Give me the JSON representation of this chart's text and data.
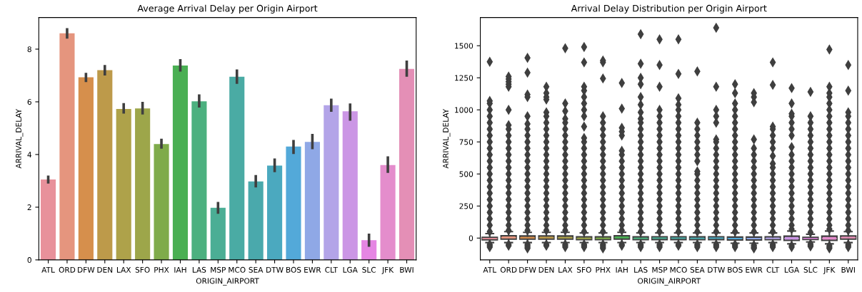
{
  "chart_data": [
    {
      "type": "bar",
      "title": "Average Arrival Delay per Origin Airport",
      "xlabel": "ORIGIN_AIRPORT",
      "ylabel": "ARRIVAL_DELAY",
      "categories": [
        "ATL",
        "ORD",
        "DFW",
        "DEN",
        "LAX",
        "SFO",
        "PHX",
        "IAH",
        "LAS",
        "MSP",
        "MCO",
        "SEA",
        "DTW",
        "BOS",
        "EWR",
        "CLT",
        "LGA",
        "SLC",
        "JFK",
        "BWI"
      ],
      "values": [
        3.05,
        8.6,
        6.93,
        7.2,
        5.73,
        5.75,
        4.4,
        7.38,
        6.02,
        1.98,
        6.95,
        2.98,
        3.58,
        4.3,
        4.48,
        5.87,
        5.64,
        0.75,
        3.6,
        7.25
      ],
      "errors": [
        [
          2.9,
          3.2
        ],
        [
          8.4,
          8.8
        ],
        [
          6.75,
          7.1
        ],
        [
          7.0,
          7.4
        ],
        [
          5.55,
          5.95
        ],
        [
          5.52,
          6.0
        ],
        [
          4.22,
          4.6
        ],
        [
          7.15,
          7.62
        ],
        [
          5.78,
          6.28
        ],
        [
          1.75,
          2.2
        ],
        [
          6.68,
          7.23
        ],
        [
          2.75,
          3.22
        ],
        [
          3.33,
          3.85
        ],
        [
          4.02,
          4.55
        ],
        [
          4.2,
          4.78
        ],
        [
          5.62,
          6.12
        ],
        [
          5.28,
          5.94
        ],
        [
          0.5,
          1.0
        ],
        [
          3.3,
          3.93
        ],
        [
          6.95,
          7.57
        ]
      ],
      "colors": [
        "#e8919b",
        "#e5957e",
        "#d68f4c",
        "#bd9a4a",
        "#aea24a",
        "#9da64a",
        "#7fab4a",
        "#4aaf53",
        "#4cb07f",
        "#4bae95",
        "#4aaba4",
        "#4aa9ac",
        "#4ba9bf",
        "#53a9d9",
        "#8fa8e6",
        "#b3a4e8",
        "#cb96e5",
        "#e586e3",
        "#e48dcc",
        "#e48fb6"
      ],
      "ylim": [
        0,
        9.2
      ],
      "yticks": [
        0,
        2,
        4,
        6,
        8
      ],
      "grid": false
    },
    {
      "type": "box",
      "title": "Arrival Delay Distribution per Origin Airport",
      "xlabel": "ORIGIN_AIRPORT",
      "ylabel": "ARRIVAL_DELAY",
      "categories": [
        "ATL",
        "ORD",
        "DFW",
        "DEN",
        "LAX",
        "SFO",
        "PHX",
        "IAH",
        "LAS",
        "MSP",
        "MCO",
        "SEA",
        "DTW",
        "BOS",
        "EWR",
        "CLT",
        "LGA",
        "SLC",
        "JFK",
        "BWI"
      ],
      "colors": [
        "#e8919b",
        "#e5957e",
        "#d68f4c",
        "#bd9a4a",
        "#aea24a",
        "#9da64a",
        "#7fab4a",
        "#4aaf53",
        "#4cb07f",
        "#4bae95",
        "#4aaba4",
        "#4aa9ac",
        "#4ba9bf",
        "#53a9d9",
        "#8fa8e6",
        "#b3a4e8",
        "#cb96e5",
        "#e586e3",
        "#e48dcc",
        "#e48fb6"
      ],
      "boxes": [
        {
          "low": -35,
          "q1": -13,
          "median": -4,
          "q3": 6,
          "high": 35,
          "outliers": [
            -50,
            -60,
            -70,
            50,
            100,
            150,
            200,
            250,
            300,
            350,
            400,
            450,
            500,
            550,
            600,
            650,
            700,
            750,
            800,
            850,
            900,
            950,
            1000,
            1050,
            1070,
            1375
          ]
        },
        {
          "low": -35,
          "q1": -8,
          "median": 3,
          "q3": 18,
          "high": 50,
          "outliers": [
            -50,
            -60,
            60,
            100,
            150,
            200,
            250,
            300,
            350,
            400,
            450,
            500,
            550,
            600,
            650,
            700,
            750,
            800,
            850,
            880,
            1000,
            1180,
            1200,
            1220,
            1240,
            1260
          ]
        },
        {
          "low": -35,
          "q1": -8,
          "median": 2,
          "q3": 16,
          "high": 45,
          "outliers": [
            -50,
            -60,
            -70,
            -80,
            60,
            100,
            150,
            200,
            250,
            300,
            350,
            400,
            450,
            500,
            550,
            600,
            650,
            700,
            750,
            800,
            850,
            890,
            950,
            1100,
            1120,
            1290,
            1405
          ]
        },
        {
          "low": -35,
          "q1": -8,
          "median": 2,
          "q3": 17,
          "high": 45,
          "outliers": [
            -50,
            -60,
            60,
            100,
            150,
            200,
            250,
            300,
            350,
            400,
            450,
            500,
            550,
            600,
            650,
            700,
            750,
            800,
            850,
            900,
            950,
            980,
            1080,
            1100,
            1130,
            1180
          ]
        },
        {
          "low": -35,
          "q1": -8,
          "median": 2,
          "q3": 16,
          "high": 45,
          "outliers": [
            -50,
            -60,
            -70,
            60,
            100,
            150,
            200,
            250,
            300,
            350,
            400,
            450,
            500,
            550,
            600,
            650,
            700,
            750,
            800,
            850,
            900,
            930,
            990,
            1050,
            1480
          ]
        },
        {
          "low": -35,
          "q1": -12,
          "median": -3,
          "q3": 10,
          "high": 40,
          "outliers": [
            -50,
            -60,
            -70,
            50,
            100,
            150,
            200,
            250,
            300,
            350,
            400,
            450,
            500,
            550,
            600,
            650,
            700,
            750,
            780,
            870,
            950,
            1000,
            1050,
            1100,
            1150,
            1180,
            1370,
            1490
          ]
        },
        {
          "low": -35,
          "q1": -12,
          "median": -3,
          "q3": 10,
          "high": 40,
          "outliers": [
            -50,
            -60,
            -70,
            -80,
            50,
            100,
            150,
            200,
            250,
            300,
            350,
            400,
            450,
            500,
            550,
            600,
            650,
            700,
            750,
            800,
            850,
            900,
            950,
            1245,
            1370,
            1385
          ]
        },
        {
          "low": -35,
          "q1": -8,
          "median": 4,
          "q3": 18,
          "high": 45,
          "outliers": [
            -50,
            -60,
            60,
            100,
            150,
            200,
            250,
            300,
            350,
            400,
            450,
            500,
            550,
            600,
            650,
            680,
            800,
            830,
            860,
            1010,
            1210
          ]
        },
        {
          "low": -35,
          "q1": -12,
          "median": -3,
          "q3": 10,
          "high": 40,
          "outliers": [
            -50,
            -60,
            -70,
            50,
            100,
            150,
            200,
            250,
            300,
            350,
            400,
            450,
            500,
            550,
            600,
            650,
            700,
            750,
            800,
            850,
            900,
            930,
            980,
            1040,
            1100,
            1200,
            1250,
            1360,
            1590
          ]
        },
        {
          "low": -35,
          "q1": -12,
          "median": 0,
          "q3": 10,
          "high": 40,
          "outliers": [
            -50,
            -60,
            -70,
            50,
            100,
            150,
            200,
            250,
            300,
            350,
            400,
            450,
            500,
            550,
            600,
            650,
            700,
            750,
            800,
            850,
            900,
            950,
            1000,
            1180,
            1350,
            1550
          ]
        },
        {
          "low": -35,
          "q1": -12,
          "median": 0,
          "q3": 10,
          "high": 40,
          "outliers": [
            -50,
            -60,
            50,
            100,
            150,
            200,
            250,
            300,
            350,
            400,
            450,
            500,
            550,
            600,
            650,
            700,
            750,
            800,
            850,
            900,
            950,
            1000,
            1040,
            1090,
            1280,
            1550
          ]
        },
        {
          "low": -35,
          "q1": -12,
          "median": -3,
          "q3": 10,
          "high": 40,
          "outliers": [
            -50,
            -60,
            -70,
            50,
            100,
            150,
            200,
            250,
            300,
            350,
            400,
            450,
            500,
            520,
            600,
            650,
            700,
            750,
            800,
            850,
            900,
            1300
          ]
        },
        {
          "low": -35,
          "q1": -12,
          "median": 0,
          "q3": 10,
          "high": 40,
          "outliers": [
            -50,
            -60,
            -70,
            50,
            100,
            150,
            200,
            250,
            300,
            350,
            400,
            450,
            500,
            550,
            600,
            650,
            700,
            750,
            770,
            900,
            950,
            1000,
            1180,
            1640
          ]
        },
        {
          "low": -40,
          "q1": -15,
          "median": -2,
          "q3": 8,
          "high": 40,
          "outliers": [
            -50,
            -60,
            -70,
            50,
            100,
            150,
            200,
            250,
            300,
            350,
            400,
            450,
            500,
            550,
            600,
            650,
            700,
            750,
            800,
            850,
            900,
            950,
            1000,
            1050,
            1130,
            1200
          ]
        },
        {
          "low": -40,
          "q1": -15,
          "median": -2,
          "q3": 8,
          "high": 40,
          "outliers": [
            -55,
            -65,
            -75,
            -80,
            50,
            100,
            150,
            200,
            250,
            300,
            350,
            400,
            450,
            500,
            550,
            600,
            650,
            700,
            770,
            1060,
            1100,
            1130
          ]
        },
        {
          "low": -35,
          "q1": -12,
          "median": -3,
          "q3": 10,
          "high": 40,
          "outliers": [
            -50,
            -60,
            -70,
            50,
            100,
            150,
            200,
            250,
            300,
            350,
            400,
            450,
            500,
            550,
            580,
            640,
            700,
            750,
            800,
            850,
            870,
            1195,
            1370
          ]
        },
        {
          "low": -45,
          "q1": -18,
          "median": -3,
          "q3": 15,
          "high": 55,
          "outliers": [
            -60,
            -70,
            70,
            100,
            150,
            200,
            250,
            300,
            350,
            400,
            450,
            500,
            550,
            600,
            650,
            710,
            800,
            850,
            900,
            950,
            970,
            1050,
            1170
          ]
        },
        {
          "low": -30,
          "q1": -10,
          "median": -3,
          "q3": 6,
          "high": 30,
          "outliers": [
            -45,
            -55,
            -65,
            45,
            100,
            150,
            200,
            250,
            300,
            350,
            400,
            450,
            500,
            550,
            600,
            650,
            700,
            750,
            800,
            850,
            900,
            950,
            1140
          ]
        },
        {
          "low": -45,
          "q1": -18,
          "median": -3,
          "q3": 15,
          "high": 55,
          "outliers": [
            -60,
            -70,
            -80,
            70,
            100,
            150,
            200,
            250,
            300,
            350,
            400,
            450,
            500,
            550,
            600,
            650,
            700,
            750,
            800,
            850,
            900,
            950,
            1000,
            1050,
            1100,
            1130,
            1180,
            1470
          ]
        },
        {
          "low": -35,
          "q1": -8,
          "median": 3,
          "q3": 17,
          "high": 50,
          "outliers": [
            -50,
            -60,
            -70,
            60,
            100,
            150,
            200,
            250,
            300,
            350,
            400,
            450,
            500,
            550,
            600,
            650,
            700,
            750,
            800,
            850,
            900,
            950,
            980,
            1150,
            1350
          ]
        }
      ],
      "ylim": [
        -170,
        1720
      ],
      "yticks": [
        0,
        250,
        500,
        750,
        1000,
        1250,
        1500
      ],
      "grid": false,
      "marker": "diamond"
    }
  ]
}
